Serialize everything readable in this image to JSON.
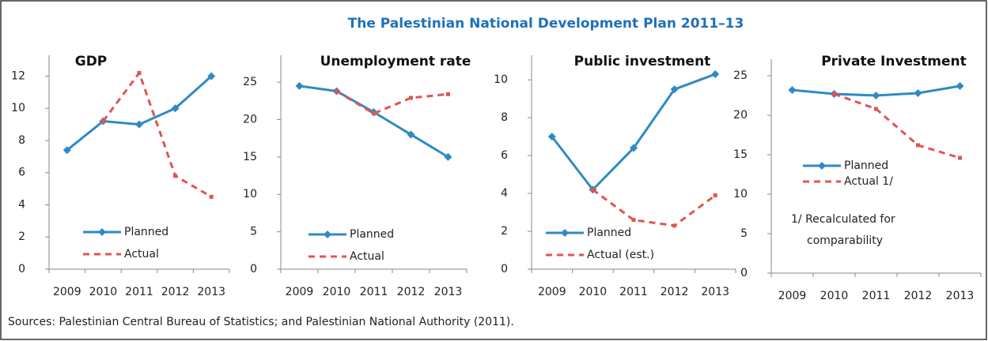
{
  "title": "The Palestinian National Development Plan 2011–13",
  "chart_data": [
    {
      "type": "line",
      "title": "GDP",
      "categories": [
        "2009",
        "2010",
        "2011",
        "2012",
        "2013"
      ],
      "series": [
        {
          "name": "Planned",
          "color": "#2f8ac4",
          "values": [
            7.4,
            9.2,
            9.0,
            10.0,
            12.0
          ]
        },
        {
          "name": "Actual",
          "color": "#e05550",
          "values": [
            null,
            9.2,
            12.2,
            5.8,
            4.5
          ]
        }
      ],
      "ylim": [
        0,
        13.3
      ],
      "yticks": [
        0,
        2,
        4,
        6,
        8,
        10,
        12
      ]
    },
    {
      "type": "line",
      "title": "Unemployment rate",
      "categories": [
        "2009",
        "2010",
        "2011",
        "2012",
        "2013"
      ],
      "series": [
        {
          "name": "Planned",
          "color": "#2f8ac4",
          "values": [
            24.5,
            23.8,
            21.0,
            18.0,
            15.0
          ]
        },
        {
          "name": "Actual",
          "color": "#e05550",
          "values": [
            null,
            23.8,
            20.8,
            22.9,
            23.4
          ]
        }
      ],
      "ylim": [
        0,
        28.6
      ],
      "yticks": [
        0,
        5,
        10,
        15,
        20,
        25
      ]
    },
    {
      "type": "line",
      "title": "Public investment",
      "categories": [
        "2009",
        "2010",
        "2011",
        "2012",
        "2013"
      ],
      "series": [
        {
          "name": "Planned",
          "color": "#2f8ac4",
          "values": [
            7.0,
            4.2,
            6.4,
            9.5,
            10.3
          ]
        },
        {
          "name": "Actual (est.)",
          "color": "#e05550",
          "values": [
            null,
            4.2,
            2.6,
            2.3,
            3.9
          ]
        }
      ],
      "ylim": [
        0,
        11.3
      ],
      "yticks": [
        0,
        2,
        4,
        6,
        8,
        10
      ]
    },
    {
      "type": "line",
      "title": "Private Investment",
      "categories": [
        "2009",
        "2010",
        "2011",
        "2012",
        "2013"
      ],
      "series": [
        {
          "name": "Planned",
          "color": "#2f8ac4",
          "values": [
            23.2,
            22.7,
            22.5,
            22.8,
            23.7
          ]
        },
        {
          "name": "Actual 1/",
          "color": "#e05550",
          "values": [
            null,
            22.7,
            20.8,
            16.2,
            14.6
          ]
        }
      ],
      "ylim": [
        0,
        27.1
      ],
      "yticks": [
        0,
        5,
        10,
        15,
        20,
        25
      ],
      "annotations": [
        "1/ Recalculated for",
        "comparability"
      ]
    }
  ],
  "source": "Sources: Palestinian Central Bureau of Statistics; and Palestinian National Authority (2011)."
}
